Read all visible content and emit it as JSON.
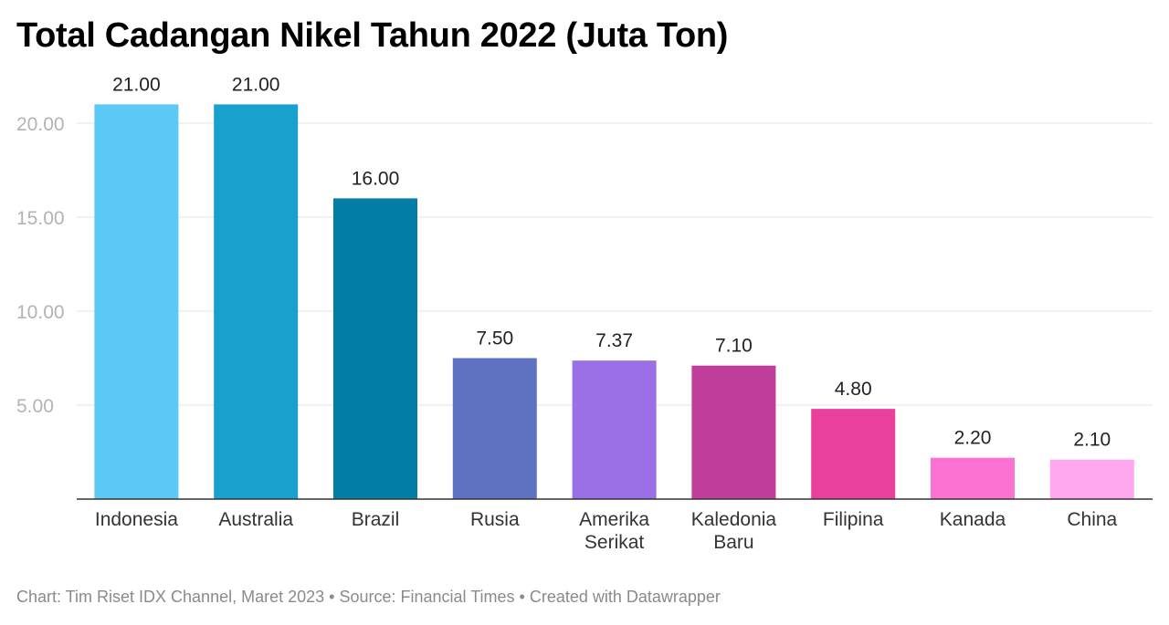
{
  "chart_data": {
    "type": "bar",
    "title": "Total Cadangan Nikel Tahun 2022 (Juta Ton)",
    "categories": [
      "Indonesia",
      "Australia",
      "Brazil",
      "Rusia",
      "Amerika Serikat",
      "Kaledonia Baru",
      "Filipina",
      "Kanada",
      "China"
    ],
    "category_lines": [
      [
        "Indonesia"
      ],
      [
        "Australia"
      ],
      [
        "Brazil"
      ],
      [
        "Rusia"
      ],
      [
        "Amerika",
        "Serikat"
      ],
      [
        "Kaledonia",
        "Baru"
      ],
      [
        "Filipina"
      ],
      [
        "Kanada"
      ],
      [
        "China"
      ]
    ],
    "values": [
      21.0,
      21.0,
      16.0,
      7.5,
      7.37,
      7.1,
      4.8,
      2.2,
      2.1
    ],
    "value_labels": [
      "21.00",
      "21.00",
      "16.00",
      "7.50",
      "7.37",
      "7.10",
      "4.80",
      "2.20",
      "2.10"
    ],
    "colors": [
      "#5bc8f5",
      "#18a1cd",
      "#037ca6",
      "#5f72c2",
      "#9b6fe6",
      "#c03d9c",
      "#e8409c",
      "#fb72d2",
      "#ffa8ef"
    ],
    "yticks": [
      5,
      10,
      15,
      20
    ],
    "ytick_labels": [
      "5.00",
      "10.00",
      "15.00",
      "20.00"
    ],
    "ylim": [
      0,
      21
    ],
    "grid": true,
    "xlabel": "",
    "ylabel": ""
  },
  "footer": {
    "text": "Chart: Tim Riset IDX Channel, Maret 2023 • Source: Financial Times • Created with Datawrapper"
  }
}
